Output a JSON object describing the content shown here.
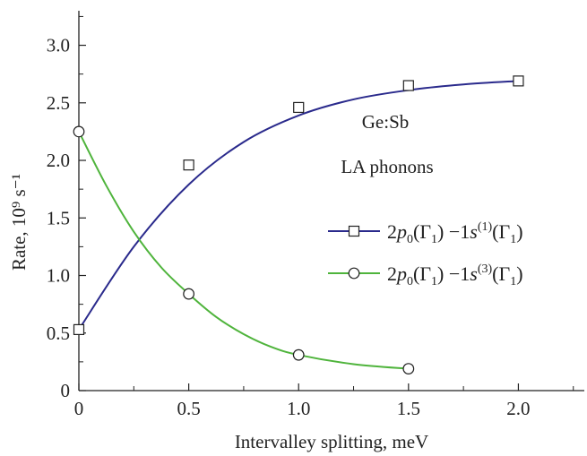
{
  "chart_data": {
    "type": "line",
    "xlabel": "Intervalley splitting, meV",
    "ylabel": "Rate, 10⁹ s⁻¹",
    "xlim": [
      0,
      2.3
    ],
    "ylim": [
      0,
      3.3
    ],
    "x_ticks": [
      "0",
      "0.5",
      "1.0",
      "1.5",
      "2.0"
    ],
    "y_ticks": [
      "0",
      "0.5",
      "1.0",
      "1.5",
      "2.0",
      "2.5",
      "3.0"
    ],
    "grid": false,
    "legend_position": "center-right",
    "annotations": [
      "Ge:Sb",
      "LA phonons"
    ],
    "series": [
      {
        "name": "2p0(Γ1) −1s(1)(Γ1)",
        "marker": "square",
        "color": "#2a2a8c",
        "points": [
          [
            0,
            0.53
          ],
          [
            0.5,
            1.96
          ],
          [
            1.0,
            2.46
          ],
          [
            1.5,
            2.65
          ],
          [
            2.0,
            2.69
          ]
        ],
        "curve": [
          [
            0,
            0.53
          ],
          [
            0.25,
            1.25
          ],
          [
            0.5,
            1.79
          ],
          [
            0.75,
            2.16
          ],
          [
            1.0,
            2.39
          ],
          [
            1.25,
            2.53
          ],
          [
            1.5,
            2.61
          ],
          [
            1.75,
            2.66
          ],
          [
            2.0,
            2.69
          ]
        ]
      },
      {
        "name": "2p0(Γ1) −1s(3)(Γ1)",
        "marker": "circle",
        "color": "#4fb43c",
        "points": [
          [
            0,
            2.25
          ],
          [
            0.5,
            0.84
          ],
          [
            1.0,
            0.31
          ],
          [
            1.5,
            0.19
          ]
        ],
        "curve": [
          [
            0,
            2.25
          ],
          [
            0.125,
            1.78
          ],
          [
            0.25,
            1.38
          ],
          [
            0.375,
            1.07
          ],
          [
            0.5,
            0.84
          ],
          [
            0.625,
            0.64
          ],
          [
            0.75,
            0.49
          ],
          [
            0.875,
            0.38
          ],
          [
            1.0,
            0.31
          ],
          [
            1.25,
            0.23
          ],
          [
            1.5,
            0.19
          ]
        ]
      }
    ]
  }
}
